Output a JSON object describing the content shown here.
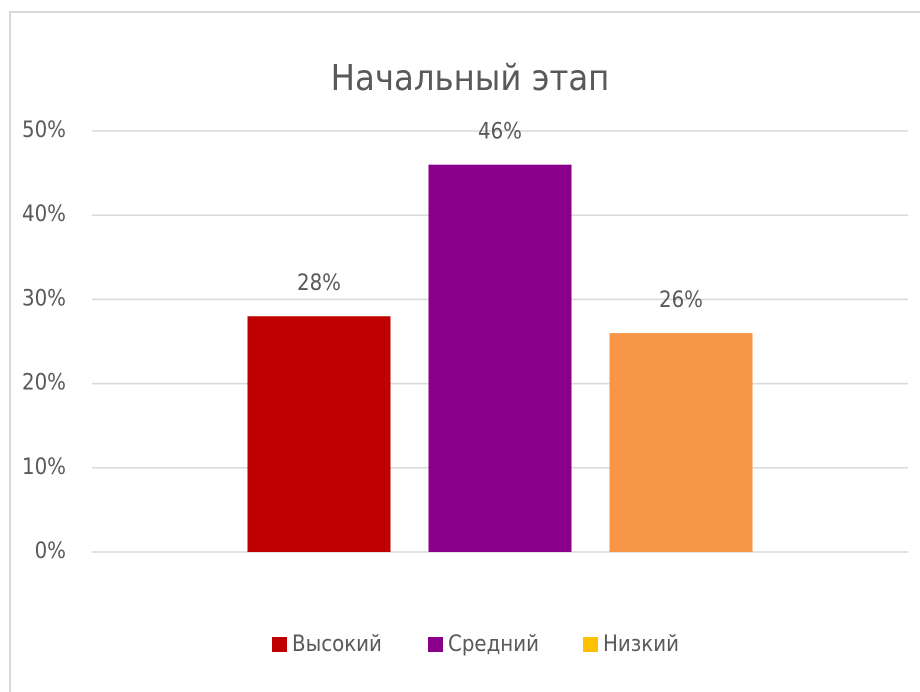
{
  "chart_data": {
    "type": "bar",
    "title": "Начальный этап",
    "series": [
      {
        "name": "Высокий",
        "color": "#c00000",
        "legend_color": "#c00000",
        "values": [
          28
        ],
        "value_labels": [
          "28%"
        ]
      },
      {
        "name": "Средний",
        "color": "#8b008b",
        "legend_color": "#8b008b",
        "values": [
          46
        ],
        "value_labels": [
          "46%"
        ]
      },
      {
        "name": "Низкий",
        "color": "#f79646",
        "legend_color": "#ffc000",
        "values": [
          26
        ],
        "value_labels": [
          "26%"
        ]
      }
    ],
    "ylim": [
      0,
      50
    ],
    "yticks": [
      {
        "value": 0,
        "label": "0%"
      },
      {
        "value": 10,
        "label": "10%"
      },
      {
        "value": 20,
        "label": "20%"
      },
      {
        "value": 30,
        "label": "30%"
      },
      {
        "value": 40,
        "label": "40%"
      },
      {
        "value": 50,
        "label": "50%"
      }
    ],
    "grid": true,
    "legend": "bottom"
  }
}
